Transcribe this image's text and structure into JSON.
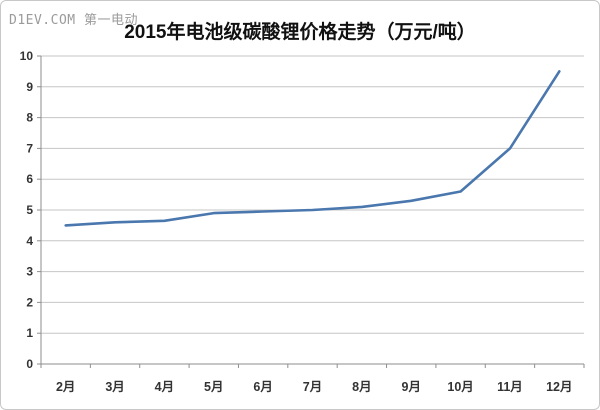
{
  "watermark": {
    "text": "D1EV.COM 第一电动"
  },
  "chart_data": {
    "type": "line",
    "title": "2015年电池级碳酸锂价格走势（万元/吨）",
    "categories": [
      "2月",
      "3月",
      "4月",
      "5月",
      "6月",
      "7月",
      "8月",
      "9月",
      "10月",
      "11月",
      "12月"
    ],
    "values": [
      4.5,
      4.6,
      4.65,
      4.9,
      4.95,
      5.0,
      5.1,
      5.3,
      5.6,
      7.0,
      9.5
    ],
    "xlabel": "",
    "ylabel": "",
    "ylim": [
      0,
      10
    ],
    "ytick_step": 1,
    "grid": true,
    "legend": "none",
    "markers": false
  },
  "colors": {
    "background": "#FFFFFF",
    "border": "#C8C8C8",
    "grid": "#C6C6C6",
    "axis": "#8E8E8E",
    "tick_label": "#333333",
    "title": "#111111",
    "watermark": "#9B9B9B",
    "line": "#4A77AD"
  }
}
